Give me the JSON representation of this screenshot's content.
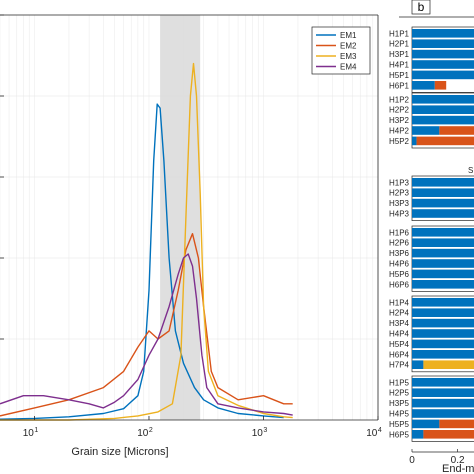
{
  "chart_data": [
    {
      "type": "line",
      "xlabel": "Grain size [Microns]",
      "xscale": "log",
      "xlim": [
        5,
        10000
      ],
      "x_ticks": [
        {
          "base": "10",
          "exp": "1",
          "value": 10
        },
        {
          "base": "10",
          "exp": "2",
          "value": 100
        },
        {
          "base": "10",
          "exp": "3",
          "value": 1000
        },
        {
          "base": "10",
          "exp": "4",
          "value": 10000
        }
      ],
      "ylim": [
        0,
        0.5
      ],
      "shaded_band": {
        "from": 125,
        "to": 280,
        "color": "#dcdcdc"
      },
      "grid": true,
      "legend_position": "top-right",
      "series": [
        {
          "name": "EM1",
          "color": "#0072BD",
          "points": [
            [
              5,
              0.001
            ],
            [
              10,
              0.002
            ],
            [
              20,
              0.004
            ],
            [
              40,
              0.008
            ],
            [
              60,
              0.014
            ],
            [
              80,
              0.03
            ],
            [
              90,
              0.06
            ],
            [
              100,
              0.16
            ],
            [
              110,
              0.32
            ],
            [
              118,
              0.39
            ],
            [
              125,
              0.385
            ],
            [
              135,
              0.32
            ],
            [
              150,
              0.2
            ],
            [
              170,
              0.11
            ],
            [
              200,
              0.07
            ],
            [
              250,
              0.04
            ],
            [
              300,
              0.025
            ],
            [
              400,
              0.015
            ],
            [
              600,
              0.008
            ],
            [
              1000,
              0.005
            ],
            [
              1500,
              0.003
            ]
          ]
        },
        {
          "name": "EM2",
          "color": "#D95319",
          "points": [
            [
              5,
              0.005
            ],
            [
              10,
              0.015
            ],
            [
              20,
              0.025
            ],
            [
              40,
              0.04
            ],
            [
              60,
              0.06
            ],
            [
              80,
              0.09
            ],
            [
              100,
              0.11
            ],
            [
              120,
              0.1
            ],
            [
              150,
              0.11
            ],
            [
              180,
              0.16
            ],
            [
              210,
              0.21
            ],
            [
              240,
              0.23
            ],
            [
              270,
              0.2
            ],
            [
              300,
              0.14
            ],
            [
              350,
              0.06
            ],
            [
              400,
              0.04
            ],
            [
              600,
              0.025
            ],
            [
              1000,
              0.03
            ],
            [
              1500,
              0.02
            ],
            [
              1800,
              0.02
            ]
          ]
        },
        {
          "name": "EM3",
          "color": "#EDB120",
          "points": [
            [
              5,
              0.0
            ],
            [
              20,
              0.0
            ],
            [
              50,
              0.002
            ],
            [
              80,
              0.005
            ],
            [
              120,
              0.01
            ],
            [
              160,
              0.02
            ],
            [
              190,
              0.08
            ],
            [
              210,
              0.25
            ],
            [
              230,
              0.4
            ],
            [
              245,
              0.44
            ],
            [
              260,
              0.4
            ],
            [
              280,
              0.28
            ],
            [
              300,
              0.14
            ],
            [
              330,
              0.06
            ],
            [
              400,
              0.03
            ],
            [
              600,
              0.018
            ],
            [
              1000,
              0.008
            ],
            [
              1500,
              0.004
            ],
            [
              1800,
              0.003
            ]
          ]
        },
        {
          "name": "EM4",
          "color": "#7E2F8E",
          "points": [
            [
              5,
              0.02
            ],
            [
              8,
              0.03
            ],
            [
              12,
              0.03
            ],
            [
              20,
              0.025
            ],
            [
              30,
              0.02
            ],
            [
              40,
              0.015
            ],
            [
              50,
              0.022
            ],
            [
              60,
              0.03
            ],
            [
              80,
              0.05
            ],
            [
              100,
              0.08
            ],
            [
              120,
              0.1
            ],
            [
              150,
              0.14
            ],
            [
              180,
              0.18
            ],
            [
              200,
              0.2
            ],
            [
              220,
              0.205
            ],
            [
              240,
              0.19
            ],
            [
              260,
              0.15
            ],
            [
              290,
              0.08
            ],
            [
              320,
              0.04
            ],
            [
              400,
              0.02
            ],
            [
              600,
              0.015
            ],
            [
              1000,
              0.01
            ],
            [
              1500,
              0.008
            ],
            [
              1800,
              0.006
            ]
          ]
        }
      ]
    },
    {
      "type": "bar",
      "orientation": "horizontal",
      "stacked": true,
      "panel_label": "b",
      "xlabel": "End-m",
      "x_ticks": [
        "0",
        "0.2"
      ],
      "xlim": [
        0,
        1
      ],
      "section_title": "S",
      "groups": [
        {
          "rows": [
            {
              "label": "H1P1",
              "EM1": 1.0,
              "EM2": 0.0,
              "EM3": 0.0,
              "EM4": 0.0
            },
            {
              "label": "H2P1",
              "EM1": 1.0,
              "EM2": 0.0,
              "EM3": 0.0,
              "EM4": 0.0
            },
            {
              "label": "H3P1",
              "EM1": 1.0,
              "EM2": 0.0,
              "EM3": 0.0,
              "EM4": 0.0
            },
            {
              "label": "H4P1",
              "EM1": 1.0,
              "EM2": 0.0,
              "EM3": 0.0,
              "EM4": 0.0
            },
            {
              "label": "H5P1",
              "EM1": 1.0,
              "EM2": 0.0,
              "EM3": 0.0,
              "EM4": 0.0
            },
            {
              "label": "H6P1",
              "EM1": 0.1,
              "EM2": 0.05,
              "EM3": 0.0,
              "EM4": 0.0
            }
          ]
        },
        {
          "rows": [
            {
              "label": "H1P2",
              "EM1": 0.55,
              "EM2": 0.0,
              "EM3": 0.45,
              "EM4": 0.0
            },
            {
              "label": "H2P2",
              "EM1": 0.6,
              "EM2": 0.0,
              "EM3": 0.4,
              "EM4": 0.0
            },
            {
              "label": "H3P2",
              "EM1": 0.65,
              "EM2": 0.0,
              "EM3": 0.0,
              "EM4": 0.35
            },
            {
              "label": "H4P2",
              "EM1": 0.12,
              "EM2": 0.88,
              "EM3": 0.0,
              "EM4": 0.0
            },
            {
              "label": "H5P2",
              "EM1": 0.02,
              "EM2": 0.98,
              "EM3": 0.0,
              "EM4": 0.0
            }
          ]
        },
        {
          "rows": [
            {
              "label": "H1P3",
              "EM1": 1.0,
              "EM2": 0.0,
              "EM3": 0.0,
              "EM4": 0.0
            },
            {
              "label": "H2P3",
              "EM1": 1.0,
              "EM2": 0.0,
              "EM3": 0.0,
              "EM4": 0.0
            },
            {
              "label": "H3P3",
              "EM1": 1.0,
              "EM2": 0.0,
              "EM3": 0.0,
              "EM4": 0.0
            },
            {
              "label": "H4P3",
              "EM1": 1.0,
              "EM2": 0.0,
              "EM3": 0.0,
              "EM4": 0.0
            }
          ]
        },
        {
          "rows": [
            {
              "label": "H1P6",
              "EM1": 1.0,
              "EM2": 0.0,
              "EM3": 0.0,
              "EM4": 0.0
            },
            {
              "label": "H2P6",
              "EM1": 0.65,
              "EM2": 0.0,
              "EM3": 0.35,
              "EM4": 0.0
            },
            {
              "label": "H3P6",
              "EM1": 0.75,
              "EM2": 0.0,
              "EM3": 0.25,
              "EM4": 0.0
            },
            {
              "label": "H4P6",
              "EM1": 1.0,
              "EM2": 0.0,
              "EM3": 0.0,
              "EM4": 0.0
            },
            {
              "label": "H5P6",
              "EM1": 1.0,
              "EM2": 0.0,
              "EM3": 0.0,
              "EM4": 0.0
            },
            {
              "label": "H6P6",
              "EM1": 1.0,
              "EM2": 0.0,
              "EM3": 0.0,
              "EM4": 0.0
            }
          ]
        },
        {
          "rows": [
            {
              "label": "H1P4",
              "EM1": 0.75,
              "EM2": 0.0,
              "EM3": 0.25,
              "EM4": 0.0
            },
            {
              "label": "H2P4",
              "EM1": 0.5,
              "EM2": 0.0,
              "EM3": 0.5,
              "EM4": 0.0
            },
            {
              "label": "H3P4",
              "EM1": 0.55,
              "EM2": 0.0,
              "EM3": 0.45,
              "EM4": 0.0
            },
            {
              "label": "H4P4",
              "EM1": 0.65,
              "EM2": 0.0,
              "EM3": 0.35,
              "EM4": 0.0
            },
            {
              "label": "H5P4",
              "EM1": 0.55,
              "EM2": 0.0,
              "EM3": 0.45,
              "EM4": 0.0
            },
            {
              "label": "H6P4",
              "EM1": 0.45,
              "EM2": 0.0,
              "EM3": 0.55,
              "EM4": 0.0
            },
            {
              "label": "H7P4",
              "EM1": 0.05,
              "EM2": 0.0,
              "EM3": 0.95,
              "EM4": 0.0
            }
          ]
        },
        {
          "rows": [
            {
              "label": "H1P5",
              "EM1": 0.4,
              "EM2": 0.0,
              "EM3": 0.6,
              "EM4": 0.0
            },
            {
              "label": "H2P5",
              "EM1": 1.0,
              "EM2": 0.0,
              "EM3": 0.0,
              "EM4": 0.0
            },
            {
              "label": "H3P5",
              "EM1": 0.6,
              "EM2": 0.0,
              "EM3": 0.4,
              "EM4": 0.0
            },
            {
              "label": "H4P5",
              "EM1": 0.45,
              "EM2": 0.0,
              "EM3": 0.55,
              "EM4": 0.0
            },
            {
              "label": "H5P5",
              "EM1": 0.12,
              "EM2": 0.3,
              "EM3": 0.58,
              "EM4": 0.0
            },
            {
              "label": "H6P5",
              "EM1": 0.05,
              "EM2": 0.55,
              "EM3": 0.4,
              "EM4": 0.0
            }
          ]
        }
      ],
      "colors": {
        "EM1": "#0072BD",
        "EM2": "#D95319",
        "EM3": "#EDB120",
        "EM4": "#7E2F8E"
      }
    }
  ]
}
